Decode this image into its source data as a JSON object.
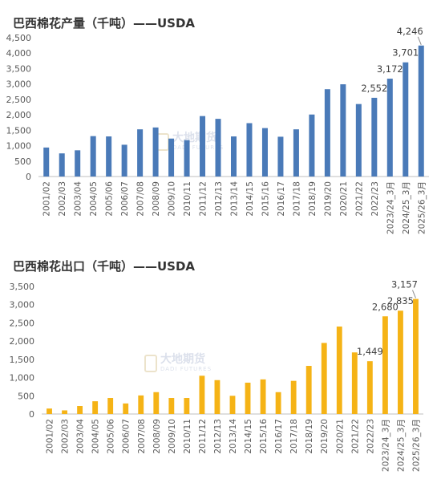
{
  "watermark": {
    "cn": "大地期货",
    "en": "DADI FUTURES"
  },
  "chart_data": [
    {
      "type": "bar",
      "title": "巴西棉花产量（千吨）——USDA",
      "categories": [
        "2001/02",
        "2002/03",
        "2003/04",
        "2004/05",
        "2005/06",
        "2006/07",
        "2007/08",
        "2008/09",
        "2009/10",
        "2010/11",
        "2011/12",
        "2012/13",
        "2013/14",
        "2014/15",
        "2015/16",
        "2016/17",
        "2017/18",
        "2018/19",
        "2019/20",
        "2020/21",
        "2021/22",
        "2022/23",
        "2023/24_3月",
        "2024/25_3月",
        "2025/26_3月"
      ],
      "values": [
        940,
        750,
        850,
        1310,
        1300,
        1030,
        1530,
        1590,
        1230,
        1180,
        1960,
        1870,
        1300,
        1730,
        1570,
        1290,
        1530,
        2010,
        2830,
        2990,
        2350,
        2552,
        3172,
        3701,
        4246
      ],
      "data_labels": [
        null,
        null,
        null,
        null,
        null,
        null,
        null,
        null,
        null,
        null,
        null,
        null,
        null,
        null,
        null,
        null,
        null,
        null,
        null,
        null,
        null,
        "2,552",
        "3,172",
        "3,701",
        "4,246"
      ],
      "ylim": [
        0,
        4500
      ],
      "yticks": [
        "0",
        "500",
        "1,000",
        "1,500",
        "2,000",
        "2,500",
        "3,000",
        "3,500",
        "4,000",
        "4,500"
      ],
      "color": "#4a7ab8",
      "xlabel": "",
      "ylabel": "",
      "grid": false,
      "legend": false
    },
    {
      "type": "bar",
      "title": "巴西棉花出口（千吨）——USDA",
      "categories": [
        "2001/02",
        "2002/03",
        "2003/04",
        "2004/05",
        "2005/06",
        "2006/07",
        "2007/08",
        "2008/09",
        "2009/10",
        "2010/11",
        "2011/12",
        "2012/13",
        "2013/14",
        "2014/15",
        "2015/16",
        "2016/17",
        "2017/18",
        "2018/19",
        "2019/20",
        "2020/21",
        "2021/22",
        "2022/23",
        "2023/24_3月",
        "2024/25_3月",
        "2025/26_3月"
      ],
      "values": [
        150,
        100,
        220,
        350,
        440,
        290,
        510,
        600,
        440,
        440,
        1050,
        930,
        500,
        860,
        950,
        600,
        910,
        1320,
        1950,
        2400,
        1690,
        1449,
        2680,
        2835,
        3157
      ],
      "data_labels": [
        null,
        null,
        null,
        null,
        null,
        null,
        null,
        null,
        null,
        null,
        null,
        null,
        null,
        null,
        null,
        null,
        null,
        null,
        null,
        null,
        null,
        "1,449",
        "2,680",
        "2,835",
        "3,157"
      ],
      "ylim": [
        0,
        3500
      ],
      "yticks": [
        "0",
        "500",
        "1,000",
        "1,500",
        "2,000",
        "2,500",
        "3,000",
        "3,500"
      ],
      "color": "#f5b316",
      "xlabel": "",
      "ylabel": "",
      "grid": false,
      "legend": false
    }
  ]
}
